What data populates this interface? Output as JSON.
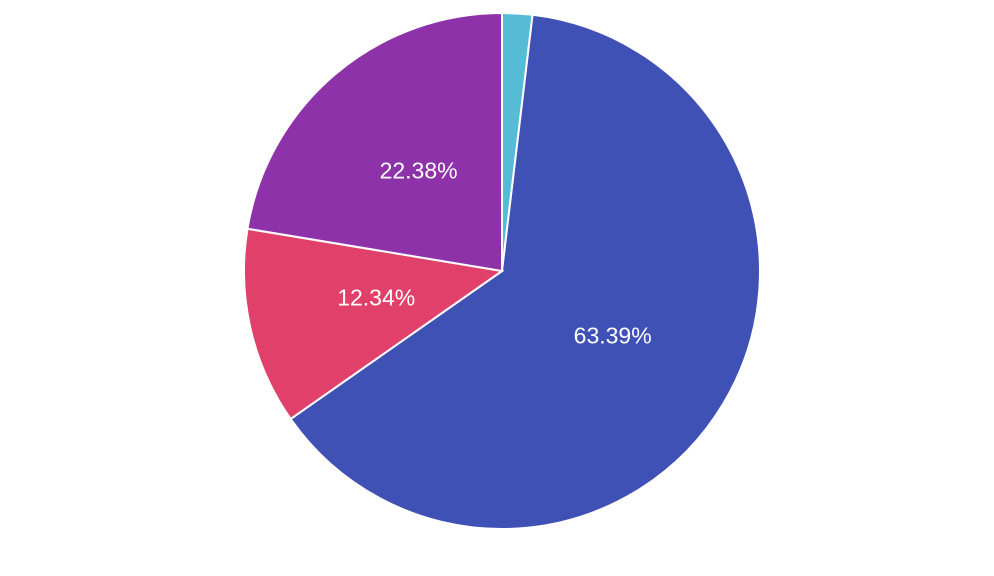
{
  "chart_data": {
    "type": "pie",
    "values": [
      1.89,
      63.39,
      12.34,
      22.38
    ],
    "value_labels": [
      null,
      "63.39%",
      "12.34%",
      "22.38%"
    ],
    "colors": [
      "#56bcd6",
      "#3f51b5",
      "#e0406a",
      "#8e32a9"
    ]
  }
}
